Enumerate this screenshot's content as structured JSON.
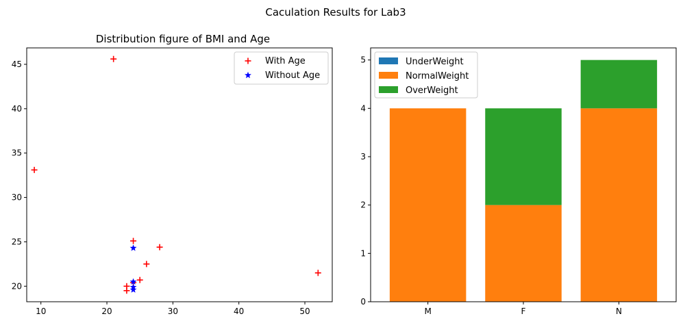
{
  "figure": {
    "suptitle": "Caculation Results for Lab3"
  },
  "chart_data": [
    {
      "type": "scatter",
      "title": "Distribution figure of BMI and Age",
      "xlabel": "",
      "ylabel": "",
      "xlim": [
        7.85,
        54.15
      ],
      "ylim": [
        18.25,
        46.85
      ],
      "xticks": [
        10,
        20,
        30,
        40,
        50
      ],
      "yticks": [
        20,
        25,
        30,
        35,
        40,
        45
      ],
      "legend_position": "upper right",
      "series": [
        {
          "name": "With Age",
          "marker": "+",
          "color": "#ff0000",
          "points": [
            [
              21,
              45.6
            ],
            [
              9,
              33.1
            ],
            [
              24,
              25.1
            ],
            [
              28,
              24.4
            ],
            [
              26,
              22.5
            ],
            [
              52,
              21.5
            ],
            [
              25,
              20.7
            ],
            [
              24,
              20.4
            ],
            [
              23,
              20.0
            ],
            [
              23,
              19.5
            ]
          ]
        },
        {
          "name": "Without Age",
          "marker": "*",
          "color": "#0000ff",
          "points": [
            [
              24,
              24.3
            ],
            [
              24,
              20.5
            ],
            [
              24,
              19.9
            ],
            [
              24,
              19.6
            ]
          ]
        }
      ]
    },
    {
      "type": "bar",
      "stacked": true,
      "title": "",
      "xlabel": "",
      "ylabel": "",
      "ylim": [
        0,
        5.25
      ],
      "yticks": [
        0,
        1,
        2,
        3,
        4,
        5
      ],
      "categories": [
        "M",
        "F",
        "N"
      ],
      "legend_position": "upper left",
      "series": [
        {
          "name": "UnderWeight",
          "color": "#1f77b4",
          "values": [
            0,
            0,
            0
          ]
        },
        {
          "name": "NormalWeight",
          "color": "#ff7f0e",
          "values": [
            4,
            2,
            4
          ]
        },
        {
          "name": "OverWeight",
          "color": "#2ca02c",
          "values": [
            0,
            2,
            1
          ]
        }
      ]
    }
  ]
}
